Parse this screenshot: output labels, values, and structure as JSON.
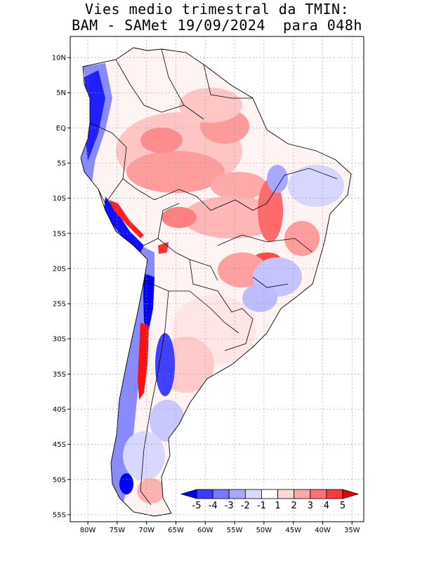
{
  "title": {
    "line1": "Vies medio trimestral da TMIN:",
    "line2": "BAM - SAMet 19/09/2024  para 048h"
  },
  "axes": {
    "lon_labels": [
      "80W",
      "75W",
      "70W",
      "65W",
      "60W",
      "55W",
      "50W",
      "45W",
      "40W",
      "35W"
    ],
    "lon_values": [
      -80,
      -75,
      -70,
      -65,
      -60,
      -55,
      -50,
      -45,
      -40,
      -35
    ],
    "lat_labels": [
      "10N",
      "5N",
      "EQ",
      "5S",
      "10S",
      "15S",
      "20S",
      "25S",
      "30S",
      "35S",
      "40S",
      "45S",
      "50S",
      "55S"
    ],
    "lat_values": [
      10,
      5,
      0,
      -5,
      -10,
      -15,
      -20,
      -25,
      -30,
      -35,
      -40,
      -45,
      -50,
      -55
    ],
    "lon_range": [
      -83,
      -33
    ],
    "lat_range": [
      13,
      -56
    ],
    "grid": true
  },
  "colorbar": {
    "labels": [
      "-5",
      "-4",
      "-3",
      "-2",
      "-1",
      "1",
      "2",
      "3",
      "4",
      "5"
    ],
    "colors": [
      "#0000ff",
      "#3c3cff",
      "#7878ff",
      "#a8a8ff",
      "#d8d8ff",
      "#ffffff",
      "#ffd6d6",
      "#ffa6a6",
      "#ff7070",
      "#ff3a3a",
      "#ee0000"
    ]
  },
  "colors": {
    "blue_strong": "#1010ff",
    "blue_mid": "#6a6aff",
    "blue_light": "#c4c4ff",
    "red_strong": "#ff1a1a",
    "red_mid": "#ff7a7a",
    "red_light": "#ffd2d2"
  }
}
